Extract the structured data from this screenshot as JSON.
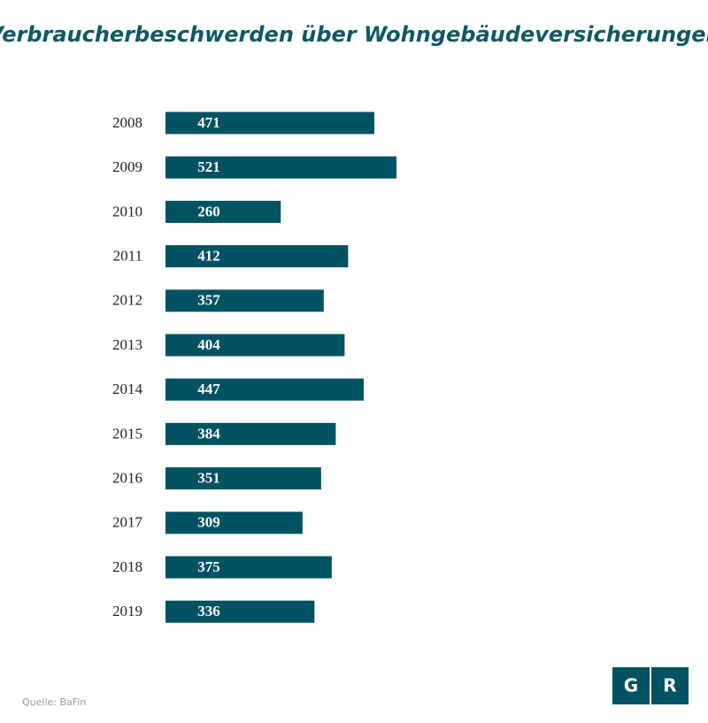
{
  "chart_data": {
    "type": "bar",
    "orientation": "horizontal",
    "title": "Verbraucherbeschwerden über Wohngebäudeversicherungen",
    "categories": [
      "2008",
      "2009",
      "2010",
      "2011",
      "2012",
      "2013",
      "2014",
      "2015",
      "2016",
      "2017",
      "2018",
      "2019"
    ],
    "values": [
      471,
      521,
      260,
      412,
      357,
      404,
      447,
      384,
      351,
      309,
      375,
      336
    ],
    "color": "#015263",
    "source": "Quelle: BaFin",
    "logo": [
      "G",
      "R"
    ]
  }
}
